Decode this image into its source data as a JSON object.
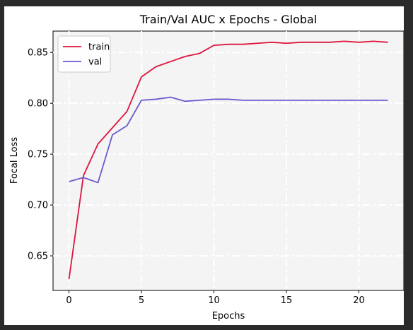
{
  "chart_data": {
    "type": "line",
    "title": "Train/Val AUC x Epochs - Global",
    "xlabel": "Epochs",
    "ylabel": "Focal Loss",
    "xlim": [
      -1.1,
      23.1
    ],
    "ylim": [
      0.616,
      0.871
    ],
    "xticks": [
      0,
      5,
      10,
      15,
      20
    ],
    "yticks": [
      0.65,
      0.7,
      0.75,
      0.8,
      0.85
    ],
    "ytick_labels": [
      "0.65",
      "0.70",
      "0.75",
      "0.80",
      "0.85"
    ],
    "grid": true,
    "legend": "top-left",
    "series": [
      {
        "name": "train",
        "color": "#dc143c",
        "x": [
          0,
          1,
          2,
          3,
          4,
          5,
          6,
          7,
          8,
          9,
          10,
          11,
          12,
          13,
          14,
          15,
          16,
          17,
          18,
          19,
          20,
          21,
          22
        ],
        "values": [
          0.627,
          0.729,
          0.76,
          0.776,
          0.792,
          0.826,
          0.836,
          0.841,
          0.846,
          0.849,
          0.857,
          0.858,
          0.858,
          0.859,
          0.86,
          0.859,
          0.86,
          0.86,
          0.86,
          0.861,
          0.86,
          0.861,
          0.86
        ]
      },
      {
        "name": "val",
        "color": "#6a5acd",
        "x": [
          0,
          1,
          2,
          3,
          4,
          5,
          6,
          7,
          8,
          9,
          10,
          11,
          12,
          13,
          14,
          15,
          16,
          17,
          18,
          19,
          20,
          21,
          22
        ],
        "values": [
          0.723,
          0.727,
          0.722,
          0.769,
          0.778,
          0.803,
          0.804,
          0.806,
          0.802,
          0.803,
          0.804,
          0.804,
          0.803,
          0.803,
          0.803,
          0.803,
          0.803,
          0.803,
          0.803,
          0.803,
          0.803,
          0.803,
          0.803
        ]
      }
    ]
  }
}
